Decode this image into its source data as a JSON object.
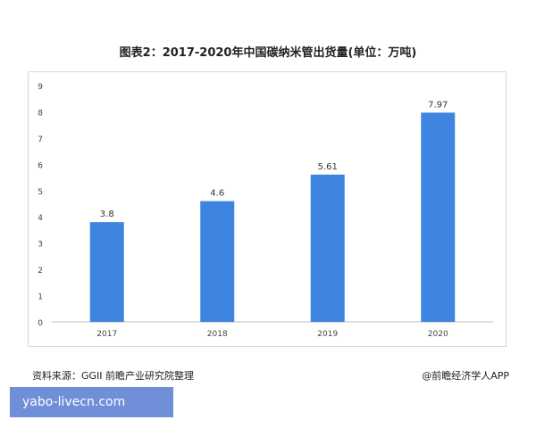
{
  "chart_data": {
    "type": "bar",
    "title": "图表2：2017-2020年中国碳纳米管出货量(单位：万吨)",
    "categories": [
      "2017",
      "2018",
      "2019",
      "2020"
    ],
    "values": [
      3.8,
      4.6,
      5.61,
      7.97
    ],
    "data_labels": [
      "3.8",
      "4.6",
      "5.61",
      "7.97"
    ],
    "yticks": [
      "0",
      "1",
      "2",
      "3",
      "4",
      "5",
      "6",
      "7",
      "8",
      "9"
    ],
    "ylim": [
      0,
      9
    ],
    "xlabel": "",
    "ylabel": "",
    "grid": false,
    "bar_color": "#3d85e0"
  },
  "footer": {
    "source": "资料来源：GGII 前瞻产业研究院整理",
    "credit": "@前瞻经济学人APP"
  },
  "overlay": {
    "link_text": "yabo-livecn.com"
  }
}
